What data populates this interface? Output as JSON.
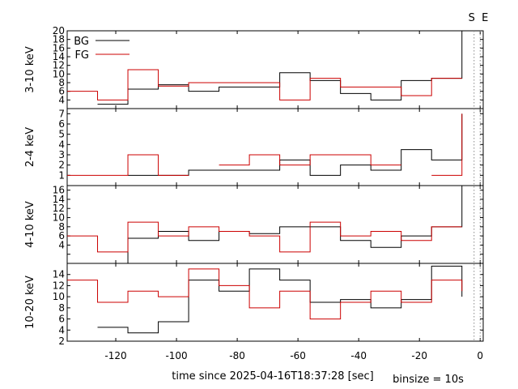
{
  "chart_data": {
    "type": "line",
    "xlabel": "time since 2025-04-16T18:37:28 [sec]",
    "binsize_label": "binsize = 10s",
    "marker_labels": [
      "S",
      "E"
    ],
    "marker_x": [
      -2,
      0
    ],
    "xlim": [
      -136,
      1
    ],
    "x_ticks": [
      -120,
      -100,
      -80,
      -60,
      -40,
      -20,
      0
    ],
    "x_tick_labels": [
      "-120",
      "-100",
      "-80",
      "-60",
      "-40",
      "-20",
      "0"
    ],
    "bin_edges": [
      -136,
      -126,
      -116,
      -106,
      -96,
      -86,
      -76,
      -66,
      -56,
      -46,
      -36,
      -26,
      -16,
      -6
    ],
    "colors": {
      "BG": "#000000",
      "FG": "#cc0000"
    },
    "legend": {
      "position": "top-left",
      "entries": [
        "BG",
        "FG"
      ]
    },
    "panels": [
      {
        "ylabel": "3-10 keV",
        "ylim": [
          2,
          20
        ],
        "y_ticks": [
          2,
          4,
          6,
          8,
          10,
          12,
          14,
          16,
          18,
          20
        ],
        "y_tick_labels": [
          "4",
          "6",
          "8",
          "10",
          "12",
          "14",
          "16",
          "18",
          "20"
        ],
        "series": [
          {
            "name": "BG",
            "values": [
              null,
              3,
              6.5,
              7.5,
              6,
              7,
              7,
              10.3,
              8.5,
              5.5,
              4,
              8.5,
              9,
              20
            ]
          },
          {
            "name": "FG",
            "values": [
              6,
              4,
              11,
              7.2,
              8,
              8,
              8,
              4,
              9,
              7,
              7,
              5,
              9,
              null
            ]
          }
        ]
      },
      {
        "ylabel": "2-4 keV",
        "ylim": [
          0,
          7.5
        ],
        "y_ticks": [
          0,
          1,
          2,
          3,
          4,
          5,
          6,
          7
        ],
        "y_tick_labels": [
          "1",
          "2",
          "3",
          "4",
          "5",
          "6",
          "7"
        ],
        "series": [
          {
            "name": "BG",
            "values": [
              null,
              null,
              1,
              1,
              1.5,
              1.5,
              1.5,
              2.5,
              1,
              2,
              1.5,
              3.5,
              2.5,
              7
            ]
          },
          {
            "name": "FG",
            "values": [
              1,
              1,
              3,
              1,
              null,
              2,
              3,
              2,
              3,
              3,
              2,
              null,
              1,
              7
            ]
          }
        ]
      },
      {
        "ylabel": "4-10 keV",
        "ylim": [
          0,
          17
        ],
        "y_ticks": [
          2,
          4,
          6,
          8,
          10,
          12,
          14,
          16
        ],
        "y_tick_labels": [
          "4",
          "6",
          "8",
          "10",
          "12",
          "14",
          "16"
        ],
        "series": [
          {
            "name": "BG",
            "values": [
              null,
              0,
              5.5,
              7,
              5,
              7,
              6.5,
              8,
              8,
              5,
              3.5,
              6,
              8,
              17
            ]
          },
          {
            "name": "FG",
            "values": [
              6,
              2.5,
              9,
              6,
              8,
              7,
              6,
              2.5,
              9,
              6,
              7,
              5,
              8,
              null
            ]
          }
        ]
      },
      {
        "ylabel": "10-20 keV",
        "ylim": [
          2,
          16
        ],
        "y_ticks": [
          2,
          4,
          6,
          8,
          10,
          12,
          14
        ],
        "y_tick_labels": [
          "2",
          "4",
          "6",
          "8",
          "10",
          "12",
          "14"
        ],
        "series": [
          {
            "name": "BG",
            "values": [
              null,
              4.5,
              3.5,
              5.5,
              13,
              11,
              15,
              13,
              9,
              9.5,
              8,
              9.5,
              15.5,
              10
            ]
          },
          {
            "name": "FG",
            "values": [
              13,
              9,
              11,
              10,
              15,
              12,
              8,
              11,
              6,
              9,
              11,
              9,
              13,
              11
            ]
          }
        ]
      }
    ]
  }
}
